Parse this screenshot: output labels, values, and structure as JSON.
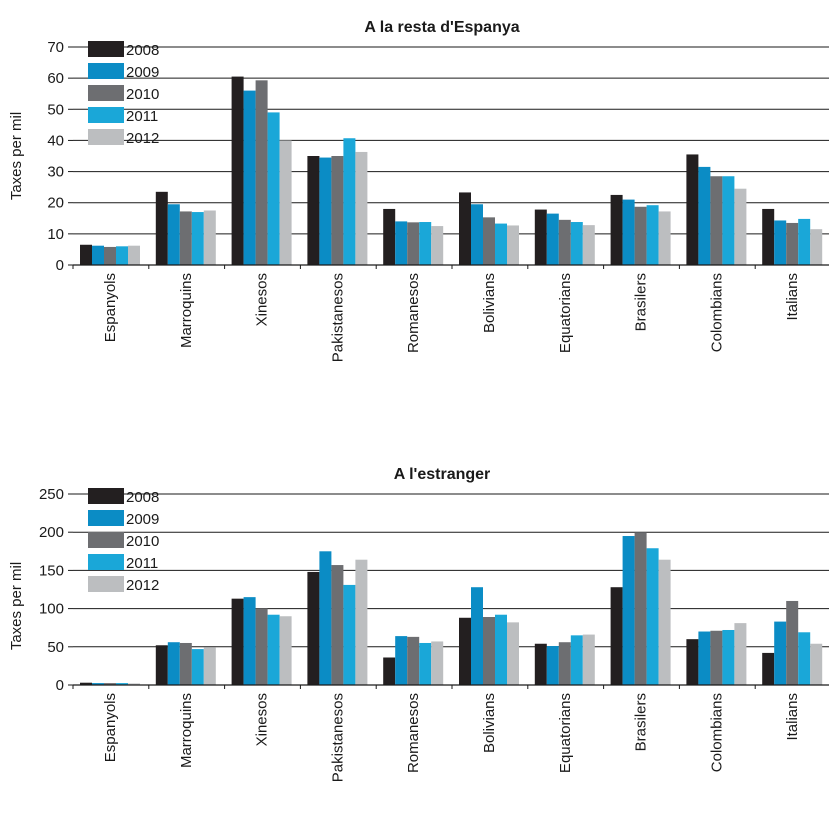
{
  "chart_data": [
    {
      "type": "bar",
      "title": "A la resta d'Espanya",
      "xlabel": "",
      "ylabel": "Taxes per mil",
      "ylim": [
        0,
        70
      ],
      "yticks": [
        0,
        10,
        20,
        30,
        40,
        50,
        60,
        70
      ],
      "grid": "horizontal",
      "legend_position": "top-left",
      "categories": [
        "Espanyols",
        "Marroquins",
        "Xinesos",
        "Pakistanesos",
        "Romanesos",
        "Bolivians",
        "Equatorians",
        "Brasilers",
        "Colombians",
        "Italians"
      ],
      "series": [
        {
          "name": "2008",
          "color": "#231f20",
          "values": [
            6.5,
            23.5,
            60.5,
            35,
            18,
            23.3,
            17.8,
            22.5,
            35.5,
            18
          ]
        },
        {
          "name": "2009",
          "color": "#0b8cc5",
          "values": [
            6.2,
            19.5,
            56,
            34.5,
            14,
            19.5,
            16.5,
            21,
            31.5,
            14.3
          ]
        },
        {
          "name": "2010",
          "color": "#6d6e71",
          "values": [
            5.8,
            17.2,
            59.3,
            35,
            13.7,
            15.3,
            14.5,
            18.7,
            28.5,
            13.5
          ]
        },
        {
          "name": "2011",
          "color": "#1aa7d8",
          "values": [
            6,
            17,
            49,
            40.7,
            13.8,
            13.3,
            13.8,
            19.2,
            28.5,
            14.8
          ]
        },
        {
          "name": "2012",
          "color": "#bcbec0",
          "values": [
            6.2,
            17.5,
            40,
            36.3,
            12.5,
            12.7,
            12.8,
            17.2,
            24.5,
            11.5
          ]
        }
      ]
    },
    {
      "type": "bar",
      "title": "A l'estranger",
      "xlabel": "",
      "ylabel": "Taxes per mil",
      "ylim": [
        0,
        250
      ],
      "yticks": [
        0,
        50,
        100,
        150,
        200,
        250
      ],
      "grid": "horizontal",
      "legend_position": "top-left",
      "categories": [
        "Espanyols",
        "Marroquins",
        "Xinesos",
        "Pakistanesos",
        "Romanesos",
        "Bolivians",
        "Equatorians",
        "Brasilers",
        "Colombians",
        "Italians"
      ],
      "series": [
        {
          "name": "2008",
          "color": "#231f20",
          "values": [
            3,
            52,
            113,
            148,
            36,
            88,
            54,
            128,
            60,
            42
          ]
        },
        {
          "name": "2009",
          "color": "#0b8cc5",
          "values": [
            2.5,
            56,
            115,
            175,
            64,
            128,
            51,
            195,
            70,
            83
          ]
        },
        {
          "name": "2010",
          "color": "#6d6e71",
          "values": [
            2.5,
            55,
            100,
            157,
            63,
            89,
            56,
            200,
            71,
            110
          ]
        },
        {
          "name": "2011",
          "color": "#1aa7d8",
          "values": [
            2.5,
            47,
            92,
            131,
            55,
            92,
            65,
            179,
            72,
            69
          ]
        },
        {
          "name": "2012",
          "color": "#bcbec0",
          "values": [
            2,
            49,
            90,
            164,
            57,
            82,
            66,
            164,
            81,
            54
          ]
        }
      ]
    }
  ]
}
